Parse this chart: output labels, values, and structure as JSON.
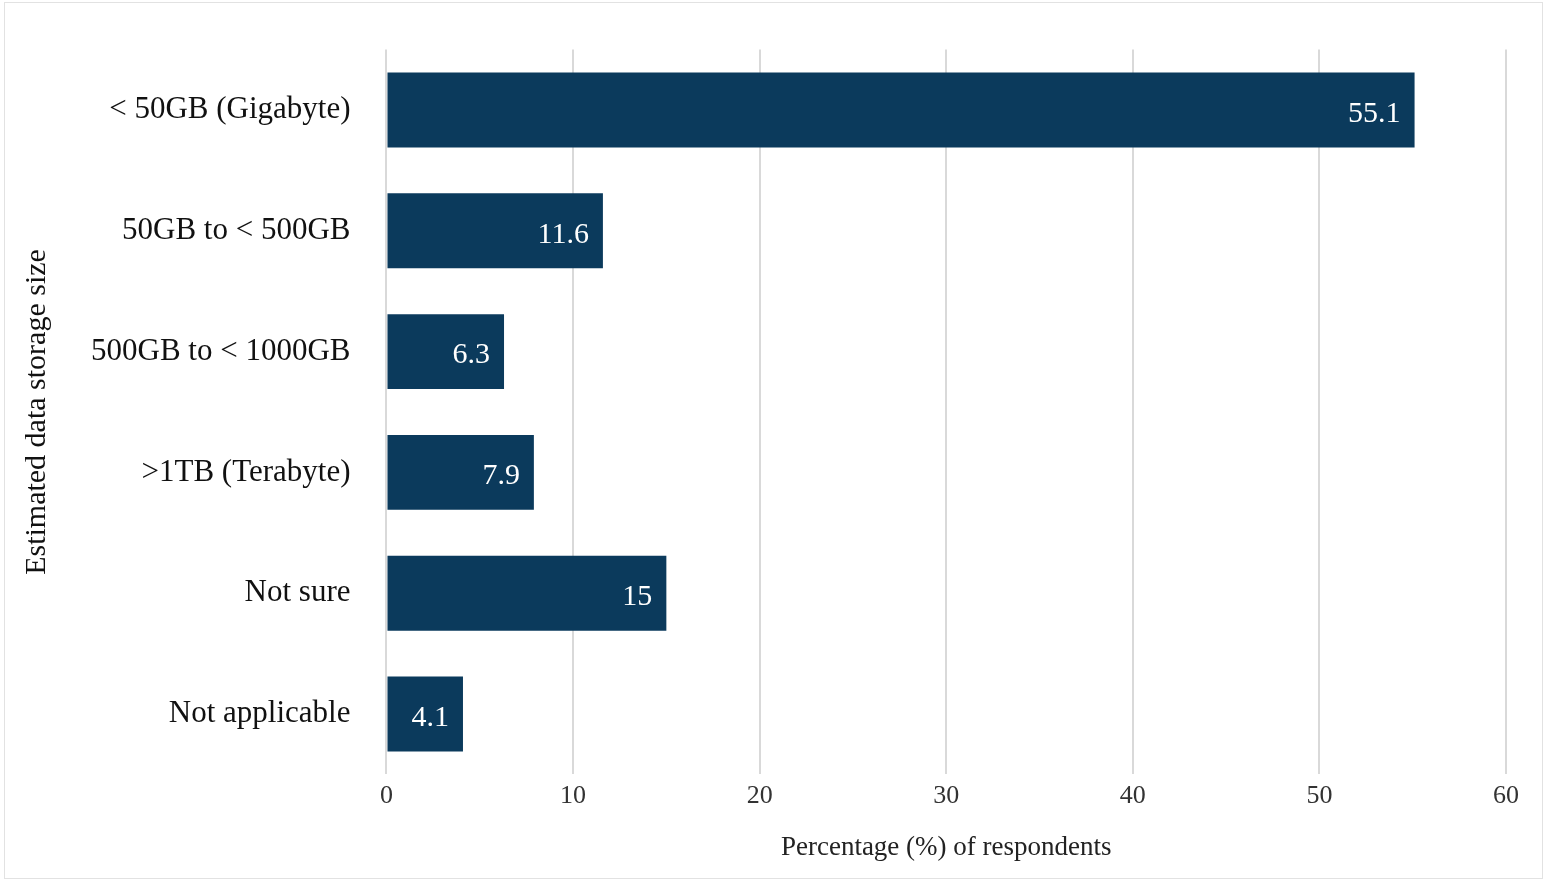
{
  "chart_data": {
    "type": "bar",
    "orientation": "horizontal",
    "xlabel": "Percentage (%) of respondents",
    "ylabel": "Estimated data storage size",
    "categories": [
      "< 50GB (Gigabyte)",
      "50GB to < 500GB",
      "500GB to < 1000GB",
      ">1TB (Terabyte)",
      "Not sure",
      "Not applicable"
    ],
    "values": [
      55.1,
      11.6,
      6.3,
      7.9,
      15,
      4.1
    ],
    "color": "#0b3a5c",
    "xlim": [
      0,
      60
    ],
    "xticks": [
      0,
      10,
      20,
      30,
      40,
      50,
      60
    ],
    "grid": "x",
    "data_labels": true,
    "legend": false
  }
}
